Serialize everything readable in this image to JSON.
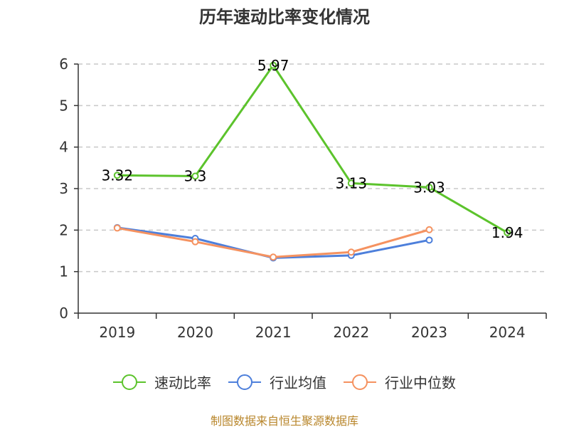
{
  "chart_data": {
    "type": "line",
    "title": "历年速动比率变化情况",
    "categories": [
      "2019",
      "2020",
      "2021",
      "2022",
      "2023",
      "2024"
    ],
    "ylim": [
      0,
      6
    ],
    "yticks": [
      0,
      1,
      2,
      3,
      4,
      5,
      6
    ],
    "grid": true,
    "legend_position": "bottom",
    "series": [
      {
        "name": "速动比率",
        "color": "#5cc32c",
        "values": [
          3.32,
          3.3,
          5.97,
          3.13,
          3.03,
          1.94
        ],
        "labels": [
          "3.32",
          "3.3",
          "5.97",
          "3.13",
          "3.03",
          "1.94"
        ],
        "show_labels": true
      },
      {
        "name": "行业均值",
        "color": "#4d7fdb",
        "values": [
          2.06,
          1.8,
          1.33,
          1.39,
          1.76,
          null
        ],
        "show_labels": false
      },
      {
        "name": "行业中位数",
        "color": "#f59260",
        "values": [
          2.05,
          1.72,
          1.35,
          1.47,
          2.01,
          null
        ],
        "show_labels": false
      }
    ],
    "source": "制图数据来自恒生聚源数据库"
  }
}
